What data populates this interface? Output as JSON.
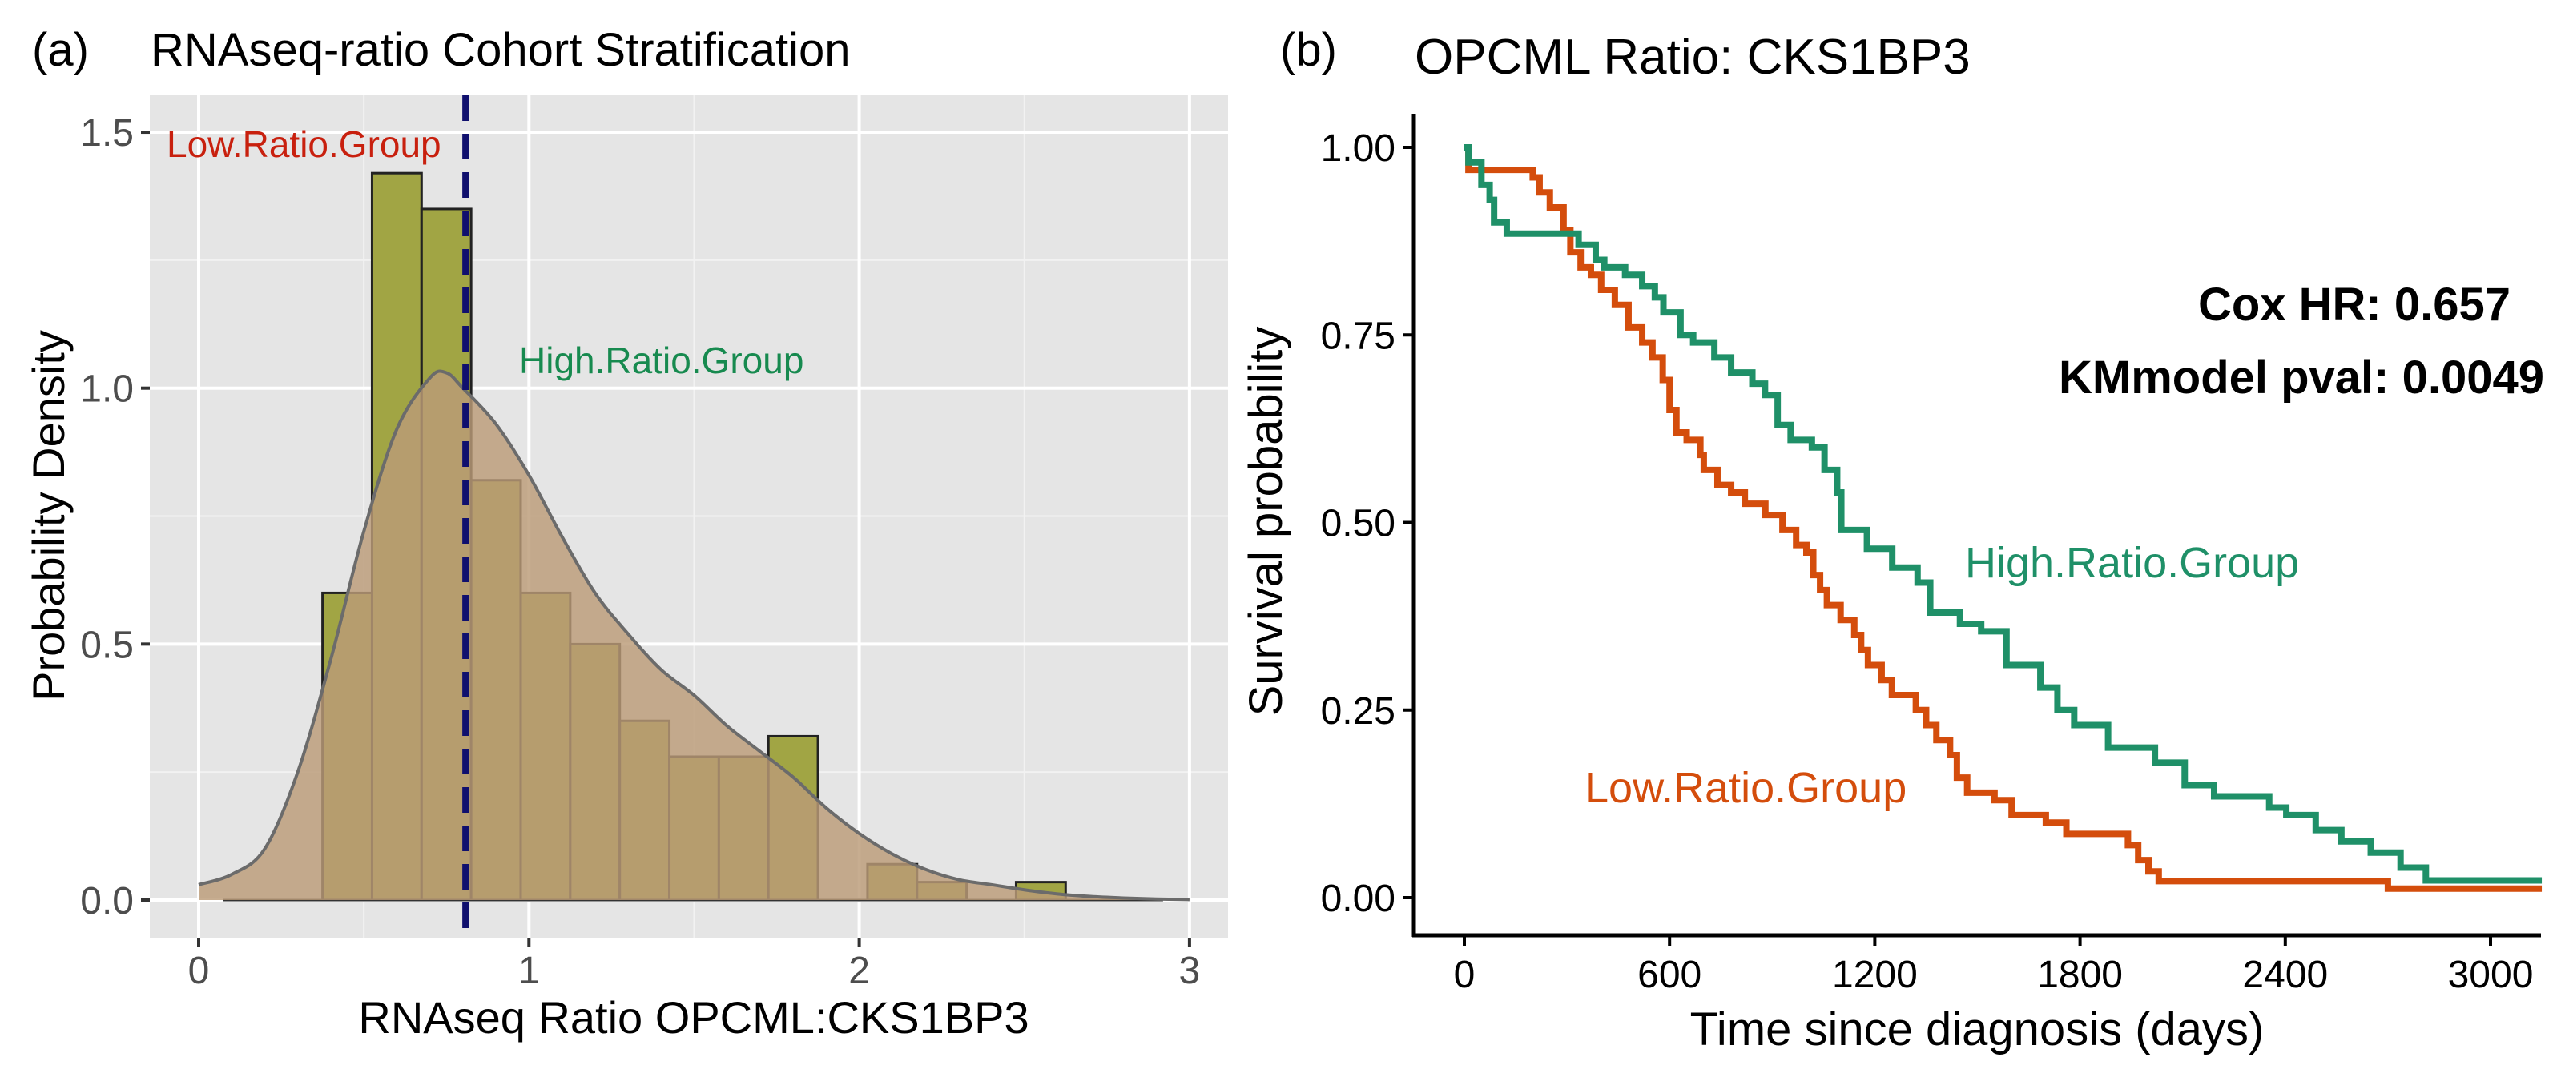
{
  "chart_data": [
    {
      "type": "bar",
      "panel_label": "(a)",
      "title": "RNAseq-ratio Cohort Stratification",
      "xlabel": "RNAseq Ratio OPCML:CKS1BP3",
      "ylabel": "Probability Density",
      "xlim": [
        -0.3,
        3.12
      ],
      "ylim": [
        -0.08,
        1.58
      ],
      "xticks": [
        0,
        1,
        2,
        3
      ],
      "xtick_labels": [
        "0",
        "1",
        "2",
        "3"
      ],
      "yticks": [
        0,
        0.5,
        1,
        1.5
      ],
      "ytick_labels": [
        "0.0",
        "0.5",
        "1.0",
        "1.5"
      ],
      "grid": true,
      "histogram": {
        "bin_start": 0.375,
        "bin_width": 0.15,
        "values": [
          0.6,
          1.42,
          1.35,
          0.82,
          0.6,
          0.5,
          0.35,
          0.28,
          0.28,
          0.32,
          0,
          0.07,
          0.035,
          0,
          0.035
        ],
        "fill": "#a1a544"
      },
      "baseline_range": [
        0.075,
        2.92
      ],
      "density": {
        "x": [
          0,
          0.1,
          0.2,
          0.3,
          0.4,
          0.5,
          0.6,
          0.7,
          0.75,
          0.8,
          0.9,
          1.0,
          1.1,
          1.2,
          1.3,
          1.4,
          1.5,
          1.6,
          1.7,
          1.8,
          1.9,
          2.0,
          2.1,
          2.2,
          2.3,
          2.4,
          2.5,
          2.6,
          2.7,
          2.8,
          2.9,
          3.0
        ],
        "y": [
          0.03,
          0.05,
          0.1,
          0.25,
          0.47,
          0.72,
          0.92,
          1.02,
          1.03,
          1.0,
          0.93,
          0.83,
          0.71,
          0.6,
          0.52,
          0.45,
          0.4,
          0.34,
          0.29,
          0.24,
          0.18,
          0.13,
          0.09,
          0.06,
          0.04,
          0.03,
          0.02,
          0.012,
          0.007,
          0.004,
          0.002,
          0.001
        ],
        "fill": "#bb9b77"
      },
      "cutoff": {
        "x": 0.808,
        "color": "#10106e"
      },
      "annotations": [
        {
          "text": "Low.Ratio.Group",
          "color": "#c8200e"
        },
        {
          "text": "High.Ratio.Group",
          "color": "#178a4f"
        }
      ]
    },
    {
      "type": "line",
      "subtype": "kaplan-meier",
      "panel_label": "(b)",
      "title": "OPCML Ratio: CKS1BP3",
      "xlabel": "Time since diagnosis (days)",
      "ylabel": "Survival probability",
      "xlim": [
        -150,
        3150
      ],
      "ylim": [
        -0.05,
        1.05
      ],
      "xticks": [
        0,
        600,
        1200,
        1800,
        2400,
        3000
      ],
      "xtick_labels": [
        "0",
        "600",
        "1200",
        "1800",
        "2400",
        "3000"
      ],
      "yticks": [
        0,
        0.25,
        0.5,
        0.75,
        1.0
      ],
      "ytick_labels": [
        "0.00",
        "0.25",
        "0.50",
        "0.75",
        "1.00"
      ],
      "grid": false,
      "series": [
        {
          "name": "High.Ratio.Group",
          "color": "#1f9068",
          "steps": [
            [
              0,
              1.0
            ],
            [
              12,
              0.98
            ],
            [
              50,
              0.95
            ],
            [
              74,
              0.93
            ],
            [
              87,
              0.9
            ],
            [
              124,
              0.885
            ],
            [
              334,
              0.87
            ],
            [
              384,
              0.85
            ],
            [
              409,
              0.84
            ],
            [
              470,
              0.83
            ],
            [
              520,
              0.815
            ],
            [
              557,
              0.8
            ],
            [
              582,
              0.78
            ],
            [
              632,
              0.75
            ],
            [
              669,
              0.74
            ],
            [
              731,
              0.72
            ],
            [
              780,
              0.7
            ],
            [
              842,
              0.685
            ],
            [
              879,
              0.67
            ],
            [
              916,
              0.63
            ],
            [
              954,
              0.61
            ],
            [
              1016,
              0.6
            ],
            [
              1053,
              0.57
            ],
            [
              1090,
              0.54
            ],
            [
              1102,
              0.49
            ],
            [
              1177,
              0.465
            ],
            [
              1251,
              0.44
            ],
            [
              1325,
              0.42
            ],
            [
              1362,
              0.38
            ],
            [
              1449,
              0.365
            ],
            [
              1511,
              0.355
            ],
            [
              1585,
              0.31
            ],
            [
              1684,
              0.28
            ],
            [
              1734,
              0.25
            ],
            [
              1783,
              0.23
            ],
            [
              1882,
              0.2
            ],
            [
              2019,
              0.18
            ],
            [
              2106,
              0.15
            ],
            [
              2192,
              0.135
            ],
            [
              2353,
              0.12
            ],
            [
              2403,
              0.11
            ],
            [
              2489,
              0.09
            ],
            [
              2564,
              0.075
            ],
            [
              2650,
              0.06
            ],
            [
              2737,
              0.04
            ],
            [
              2811,
              0.023
            ],
            [
              3150,
              0.023
            ]
          ]
        },
        {
          "name": "Low.Ratio.Group",
          "color": "#d44d0c",
          "steps": [
            [
              0,
              1.0
            ],
            [
              12,
              0.97
            ],
            [
              200,
              0.96
            ],
            [
              220,
              0.94
            ],
            [
              250,
              0.92
            ],
            [
              290,
              0.89
            ],
            [
              310,
              0.86
            ],
            [
              340,
              0.84
            ],
            [
              370,
              0.83
            ],
            [
              400,
              0.81
            ],
            [
              440,
              0.79
            ],
            [
              480,
              0.76
            ],
            [
              520,
              0.74
            ],
            [
              550,
              0.72
            ],
            [
              580,
              0.69
            ],
            [
              600,
              0.65
            ],
            [
              620,
              0.62
            ],
            [
              650,
              0.61
            ],
            [
              690,
              0.59
            ],
            [
              700,
              0.57
            ],
            [
              740,
              0.55
            ],
            [
              780,
              0.54
            ],
            [
              820,
              0.525
            ],
            [
              880,
              0.51
            ],
            [
              930,
              0.49
            ],
            [
              970,
              0.47
            ],
            [
              1000,
              0.46
            ],
            [
              1020,
              0.43
            ],
            [
              1040,
              0.41
            ],
            [
              1060,
              0.39
            ],
            [
              1100,
              0.37
            ],
            [
              1140,
              0.35
            ],
            [
              1160,
              0.33
            ],
            [
              1180,
              0.31
            ],
            [
              1220,
              0.29
            ],
            [
              1250,
              0.27
            ],
            [
              1320,
              0.25
            ],
            [
              1350,
              0.23
            ],
            [
              1380,
              0.21
            ],
            [
              1420,
              0.19
            ],
            [
              1440,
              0.16
            ],
            [
              1470,
              0.14
            ],
            [
              1550,
              0.13
            ],
            [
              1600,
              0.11
            ],
            [
              1700,
              0.1
            ],
            [
              1760,
              0.085
            ],
            [
              1940,
              0.07
            ],
            [
              1970,
              0.05
            ],
            [
              2000,
              0.035
            ],
            [
              2030,
              0.022
            ],
            [
              2700,
              0.012
            ],
            [
              3150,
              0.012
            ]
          ]
        }
      ],
      "annotations": [
        {
          "text": "Cox HR:  0.657"
        },
        {
          "text": "KMmodel pval:  0.0049"
        }
      ]
    }
  ]
}
